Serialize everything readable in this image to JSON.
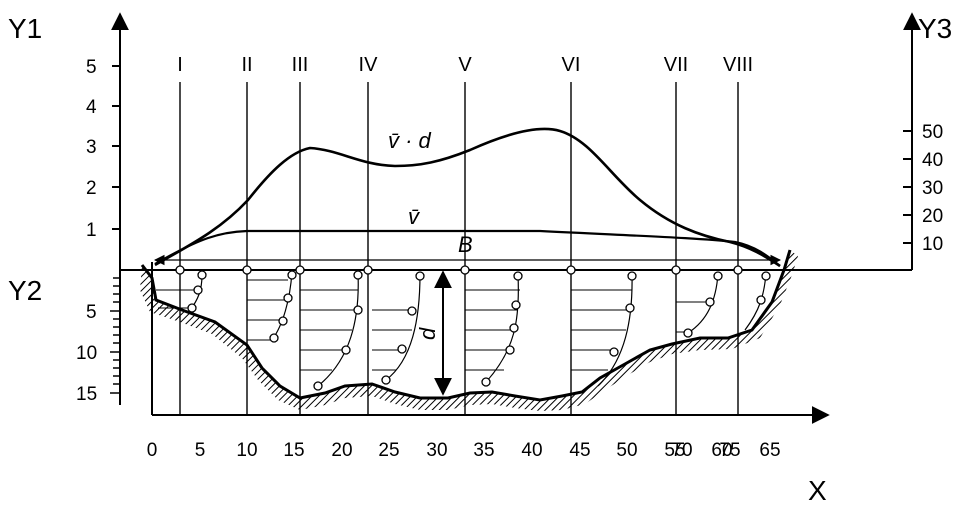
{
  "axes": {
    "y1_label": "Y1",
    "y2_label": "Y2",
    "y3_label": "Y3",
    "x_label": "X",
    "y1_ticks": [
      "1",
      "2",
      "3",
      "4",
      "5"
    ],
    "y2_ticks": [
      "5",
      "10",
      "15"
    ],
    "y3_ticks": [
      "10",
      "20",
      "30",
      "40",
      "50"
    ],
    "x_ticks": [
      "0",
      "5",
      "10",
      "15",
      "20",
      "25",
      "30",
      "35",
      "40",
      "45",
      "50",
      "55",
      "60",
      "65",
      "70",
      "75"
    ]
  },
  "sections": [
    "I",
    "II",
    "III",
    "IV",
    "V",
    "VI",
    "VII",
    "VIII"
  ],
  "curve_labels": {
    "vd": "v̄ · d",
    "v": "v̄",
    "b": "B",
    "d": "d"
  }
}
